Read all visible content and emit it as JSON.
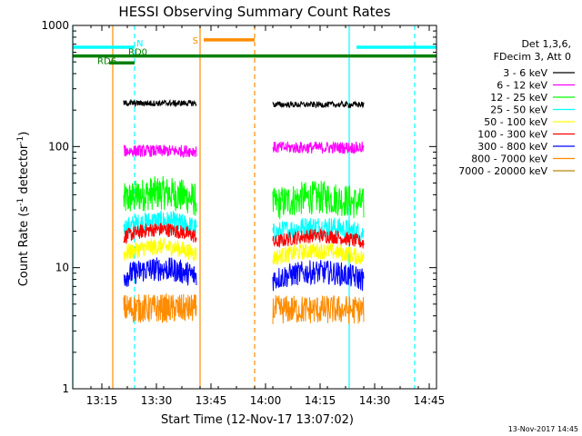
{
  "chart_data": {
    "type": "line",
    "title": "HESSI Observing Summary Count Rates",
    "xlabel": "Start Time (12-Nov-17 13:07:02)",
    "ylabel_main": "Count Rate (s",
    "ylabel_sup1": "-1",
    "ylabel_mid": " detector",
    "ylabel_sup2": "-1",
    "ylabel_end": ")",
    "yscale": "log",
    "ylim": [
      1,
      1000
    ],
    "xlim": [
      "13:07",
      "14:47"
    ],
    "x_ticks": [
      "13:15",
      "13:30",
      "13:45",
      "14:00",
      "14:15",
      "14:30",
      "14:45"
    ],
    "y_ticks": [
      "1",
      "10",
      "100",
      "1000"
    ],
    "legend": {
      "header": [
        "Det 1,3,6,",
        "FDecim 3, Att 0"
      ],
      "placement": "right"
    },
    "series": [
      {
        "name": "3 - 6 keV",
        "color": "#000000",
        "segments": [
          [
            "13:21",
            "13:41",
            228
          ],
          [
            "14:02",
            "14:27",
            222
          ]
        ]
      },
      {
        "name": "6 - 12 keV",
        "color": "#ff00ff",
        "segments": [
          [
            "13:21",
            "13:41",
            92
          ],
          [
            "14:02",
            "14:27",
            98
          ]
        ]
      },
      {
        "name": "12 - 25 keV",
        "color": "#00ff00",
        "segments": [
          [
            "13:21",
            "13:41",
            36
          ],
          [
            "14:02",
            "14:27",
            33
          ]
        ]
      },
      {
        "name": "25 - 50 keV",
        "color": "#00ffff",
        "segments": [
          [
            "13:21",
            "13:41",
            21
          ],
          [
            "14:02",
            "14:27",
            19
          ]
        ]
      },
      {
        "name": "50 - 100 keV",
        "color": "#ffff00",
        "segments": [
          [
            "13:21",
            "13:41",
            13
          ],
          [
            "14:02",
            "14:27",
            12
          ]
        ]
      },
      {
        "name": "100 - 300 keV",
        "color": "#ff0000",
        "segments": [
          [
            "13:21",
            "13:41",
            18
          ],
          [
            "14:02",
            "14:27",
            16
          ]
        ]
      },
      {
        "name": "300 - 800 keV",
        "color": "#0000ff",
        "segments": [
          [
            "13:21",
            "13:41",
            8.5
          ],
          [
            "14:02",
            "14:27",
            8
          ]
        ]
      },
      {
        "name": "800 - 7000 keV",
        "color": "#ff8c00",
        "segments": [
          [
            "13:21",
            "13:41",
            4.6
          ],
          [
            "14:02",
            "14:27",
            4.5
          ]
        ]
      },
      {
        "name": "7000 - 20000 keV",
        "color": "#b8860b",
        "segments": []
      }
    ],
    "flag_bars": [
      {
        "label": "N",
        "color": "#00ffff",
        "y": 660,
        "segments": [
          [
            "13:07",
            "13:24"
          ],
          [
            "14:25",
            "14:47"
          ]
        ]
      },
      {
        "label": "S",
        "color": "#ff8c00",
        "y": 760,
        "segments": [
          [
            "13:43",
            "13:57"
          ]
        ]
      },
      {
        "label": "RD0",
        "color": "#008000",
        "y": 560,
        "segments": [
          [
            "13:07",
            "14:47"
          ]
        ]
      },
      {
        "label": "RD6",
        "color": "#008000",
        "y": 490,
        "segments": [
          [
            "13:17",
            "13:24"
          ]
        ]
      }
    ],
    "vertical_markers": [
      {
        "time": "13:07",
        "color": "#00ffff",
        "style": "solid"
      },
      {
        "time": "13:18",
        "color": "#ff8c00",
        "style": "solid"
      },
      {
        "time": "13:24",
        "color": "#00ffff",
        "style": "dashed"
      },
      {
        "time": "13:42",
        "color": "#ff8c00",
        "style": "solid"
      },
      {
        "time": "13:57",
        "color": "#ff8c00",
        "style": "dashed"
      },
      {
        "time": "14:23",
        "color": "#00ffff",
        "style": "solid"
      },
      {
        "time": "14:41",
        "color": "#00ffff",
        "style": "dashed"
      }
    ],
    "footer": "13-Nov-2017 14:45"
  }
}
